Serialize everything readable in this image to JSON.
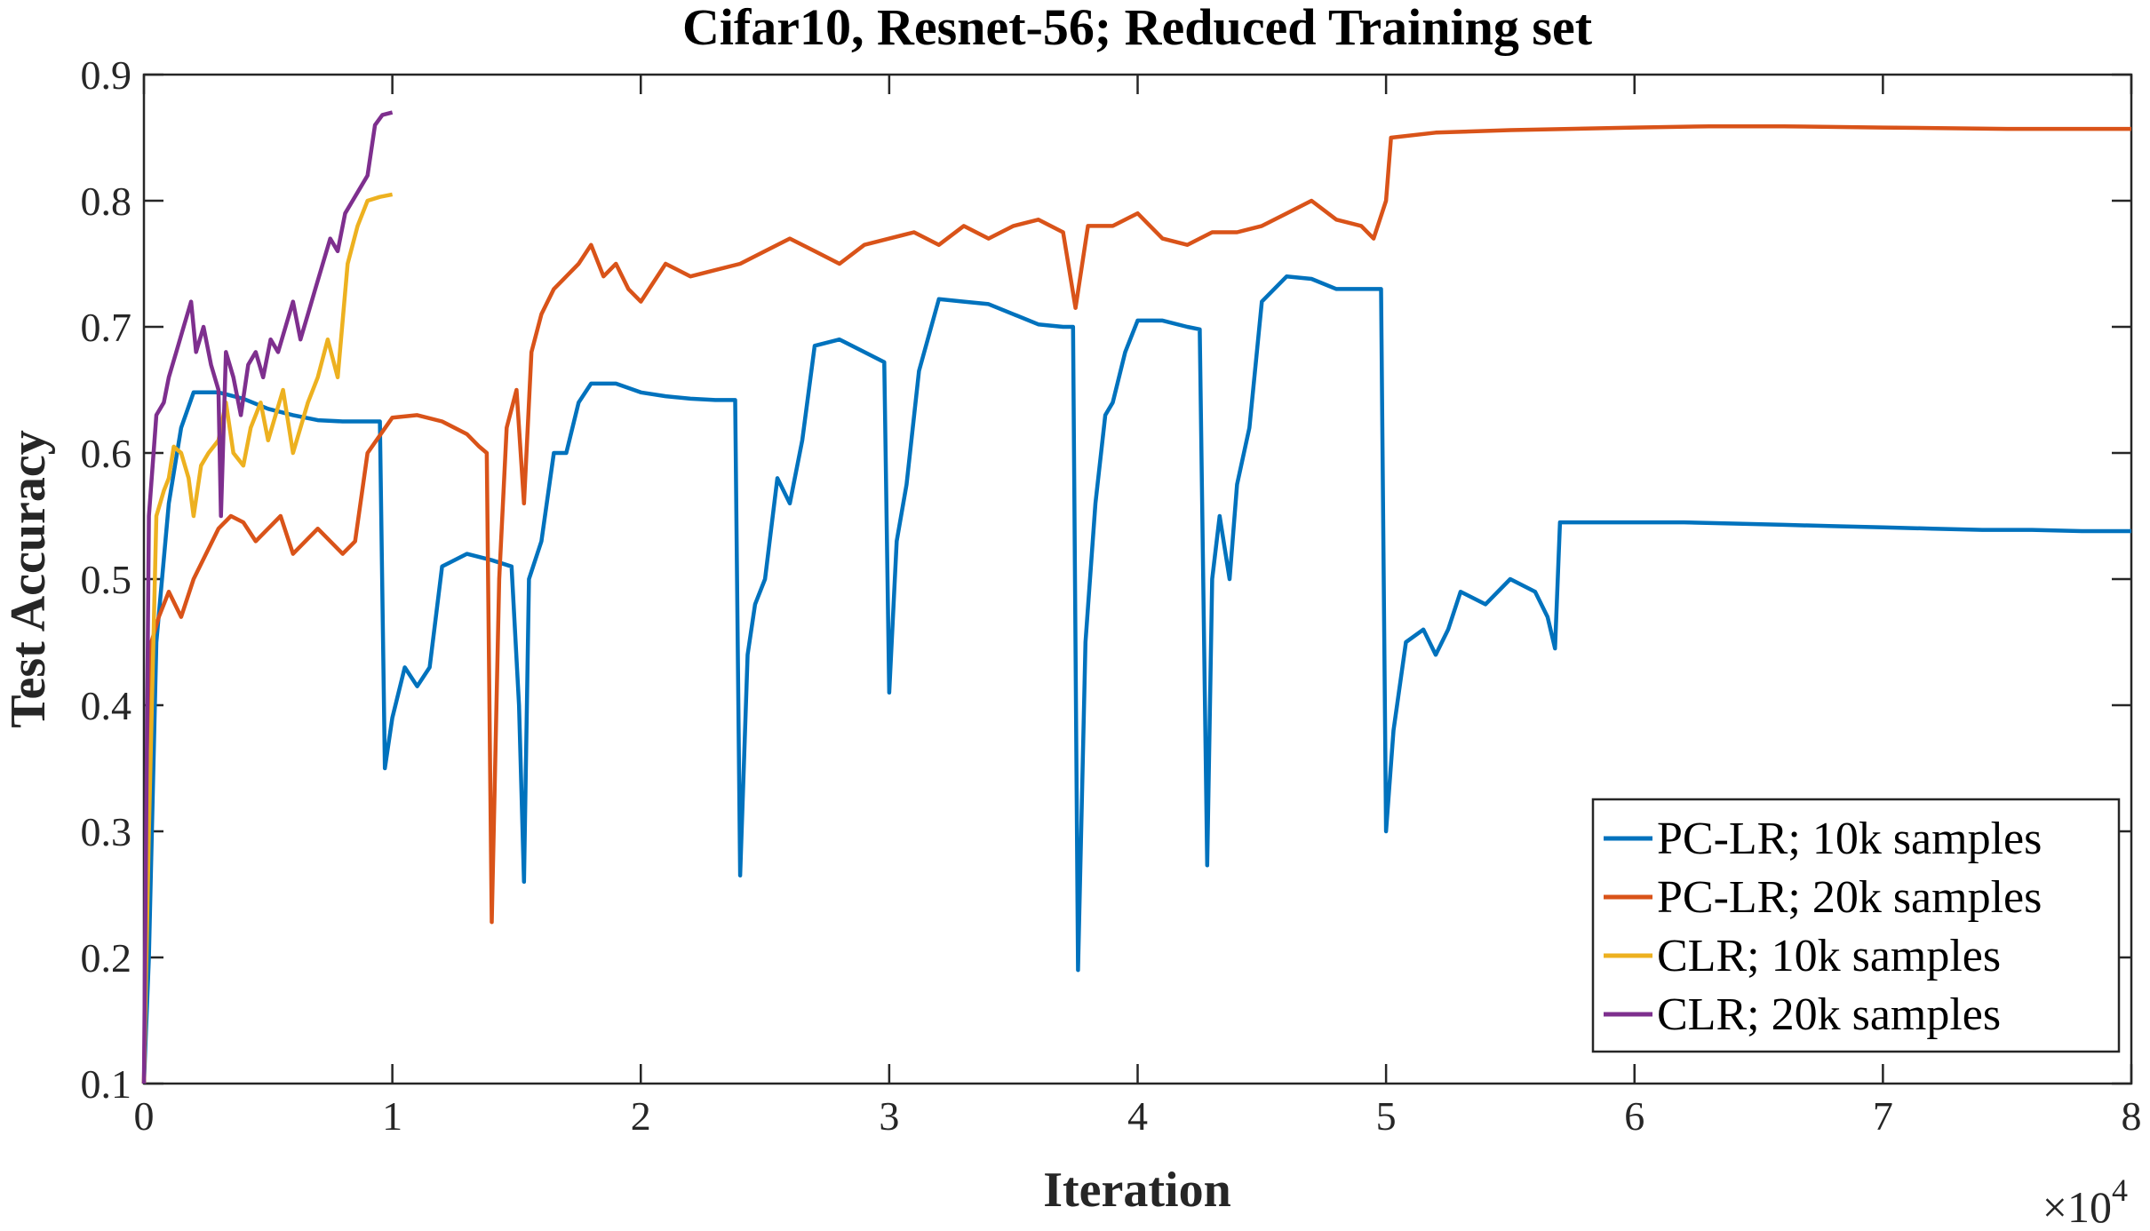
{
  "chart_data": {
    "type": "line",
    "title": "Cifar10, Resnet-56; Reduced Training set",
    "xlabel": "Iteration",
    "ylabel": "Test Accuracy",
    "x_multiplier_label": "×10",
    "x_multiplier_exponent": "4",
    "xlim": [
      0,
      80000
    ],
    "ylim": [
      0.1,
      0.9
    ],
    "xticks": [
      0,
      10000,
      20000,
      30000,
      40000,
      50000,
      60000,
      70000,
      80000
    ],
    "xtick_labels": [
      "0",
      "1",
      "2",
      "3",
      "4",
      "5",
      "6",
      "7",
      "8"
    ],
    "yticks": [
      0.1,
      0.2,
      0.3,
      0.4,
      0.5,
      0.6,
      0.7,
      0.8,
      0.9
    ],
    "ytick_labels": [
      "0.1",
      "0.2",
      "0.3",
      "0.4",
      "0.5",
      "0.6",
      "0.7",
      "0.8",
      "0.9"
    ],
    "grid": false,
    "legend_position": "bottom-right",
    "series": [
      {
        "name": "PC-LR; 10k samples",
        "color": "#0072BD",
        "x": [
          0,
          200,
          500,
          1000,
          1500,
          2000,
          3000,
          4000,
          5000,
          6000,
          7000,
          8000,
          9000,
          9500,
          9700,
          10000,
          10500,
          11000,
          11500,
          12000,
          13000,
          14000,
          14800,
          15100,
          15300,
          15500,
          16000,
          16500,
          17000,
          17500,
          18000,
          19000,
          20000,
          21000,
          22000,
          23000,
          23800,
          24000,
          24300,
          24600,
          25000,
          25500,
          26000,
          26500,
          27000,
          28000,
          29000,
          29500,
          29800,
          30000,
          30300,
          30700,
          31200,
          32000,
          33000,
          34000,
          35000,
          36000,
          37000,
          37400,
          37600,
          37900,
          38300,
          38700,
          39000,
          39500,
          40000,
          41000,
          42000,
          42500,
          42800,
          43000,
          43300,
          43700,
          44000,
          44500,
          45000,
          46000,
          47000,
          48000,
          49000,
          49800,
          50000,
          50300,
          50800,
          51500,
          52000,
          52500,
          53000,
          54000,
          55000,
          56000,
          56500,
          56800,
          57000,
          58000,
          60000,
          62000,
          64000,
          66000,
          68000,
          70000,
          72000,
          74000,
          76000,
          78000,
          80000
        ],
        "y": [
          0.1,
          0.2,
          0.45,
          0.56,
          0.62,
          0.648,
          0.648,
          0.643,
          0.635,
          0.63,
          0.626,
          0.625,
          0.625,
          0.625,
          0.35,
          0.39,
          0.43,
          0.415,
          0.43,
          0.51,
          0.52,
          0.515,
          0.51,
          0.4,
          0.26,
          0.5,
          0.53,
          0.6,
          0.6,
          0.64,
          0.655,
          0.655,
          0.648,
          0.645,
          0.643,
          0.642,
          0.642,
          0.265,
          0.44,
          0.48,
          0.5,
          0.58,
          0.56,
          0.61,
          0.685,
          0.69,
          0.68,
          0.675,
          0.672,
          0.41,
          0.53,
          0.575,
          0.665,
          0.722,
          0.72,
          0.718,
          0.71,
          0.702,
          0.7,
          0.7,
          0.19,
          0.45,
          0.56,
          0.63,
          0.64,
          0.68,
          0.705,
          0.705,
          0.7,
          0.698,
          0.273,
          0.5,
          0.55,
          0.5,
          0.575,
          0.62,
          0.72,
          0.74,
          0.738,
          0.73,
          0.73,
          0.73,
          0.3,
          0.38,
          0.45,
          0.46,
          0.44,
          0.46,
          0.49,
          0.48,
          0.5,
          0.49,
          0.47,
          0.445,
          0.545,
          0.545,
          0.545,
          0.545,
          0.544,
          0.543,
          0.542,
          0.541,
          0.54,
          0.539,
          0.539,
          0.538,
          0.538
        ]
      },
      {
        "name": "PC-LR; 20k samples",
        "color": "#D95319",
        "x": [
          0,
          300,
          600,
          1000,
          1500,
          2000,
          2500,
          3000,
          3500,
          4000,
          4500,
          5000,
          5500,
          6000,
          7000,
          8000,
          8500,
          9000,
          10000,
          11000,
          12000,
          13000,
          13500,
          13800,
          14000,
          14300,
          14600,
          15000,
          15300,
          15600,
          16000,
          16500,
          17000,
          17500,
          18000,
          18500,
          19000,
          19500,
          20000,
          21000,
          22000,
          23000,
          24000,
          25000,
          26000,
          27000,
          28000,
          29000,
          30000,
          31000,
          32000,
          33000,
          34000,
          35000,
          36000,
          37000,
          37500,
          38000,
          39000,
          40000,
          41000,
          42000,
          43000,
          44000,
          45000,
          46000,
          47000,
          48000,
          49000,
          49500,
          50000,
          50200,
          52000,
          55000,
          60000,
          63000,
          66000,
          70000,
          75000,
          80000
        ],
        "y": [
          0.1,
          0.45,
          0.47,
          0.49,
          0.47,
          0.5,
          0.52,
          0.54,
          0.55,
          0.545,
          0.53,
          0.54,
          0.55,
          0.52,
          0.54,
          0.52,
          0.53,
          0.6,
          0.628,
          0.63,
          0.625,
          0.615,
          0.605,
          0.6,
          0.228,
          0.5,
          0.62,
          0.65,
          0.56,
          0.68,
          0.71,
          0.73,
          0.74,
          0.75,
          0.765,
          0.74,
          0.75,
          0.73,
          0.72,
          0.75,
          0.74,
          0.745,
          0.75,
          0.76,
          0.77,
          0.76,
          0.75,
          0.765,
          0.77,
          0.775,
          0.765,
          0.78,
          0.77,
          0.78,
          0.785,
          0.775,
          0.715,
          0.78,
          0.78,
          0.79,
          0.77,
          0.765,
          0.775,
          0.775,
          0.78,
          0.79,
          0.8,
          0.785,
          0.78,
          0.77,
          0.8,
          0.85,
          0.854,
          0.856,
          0.858,
          0.859,
          0.859,
          0.858,
          0.857,
          0.857
        ]
      },
      {
        "name": "CLR; 10k samples",
        "color": "#EDB120",
        "x": [
          0,
          200,
          500,
          800,
          1000,
          1200,
          1500,
          1800,
          2000,
          2300,
          2600,
          3000,
          3300,
          3600,
          4000,
          4300,
          4700,
          5000,
          5300,
          5600,
          6000,
          6300,
          6600,
          7000,
          7400,
          7800,
          8200,
          8600,
          9000,
          9500,
          10000
        ],
        "y": [
          0.1,
          0.3,
          0.55,
          0.57,
          0.58,
          0.605,
          0.6,
          0.58,
          0.55,
          0.59,
          0.6,
          0.61,
          0.64,
          0.6,
          0.59,
          0.62,
          0.64,
          0.61,
          0.63,
          0.65,
          0.6,
          0.62,
          0.64,
          0.66,
          0.69,
          0.66,
          0.75,
          0.78,
          0.8,
          0.803,
          0.805
        ]
      },
      {
        "name": "CLR; 20k samples",
        "color": "#7E2F8E",
        "x": [
          0,
          200,
          500,
          800,
          1000,
          1300,
          1600,
          1900,
          2100,
          2400,
          2700,
          3000,
          3100,
          3300,
          3600,
          3900,
          4200,
          4500,
          4800,
          5100,
          5400,
          5700,
          6000,
          6300,
          6600,
          6900,
          7200,
          7500,
          7800,
          8100,
          8400,
          8700,
          9000,
          9300,
          9600,
          10000
        ],
        "y": [
          0.1,
          0.55,
          0.63,
          0.64,
          0.66,
          0.68,
          0.7,
          0.72,
          0.68,
          0.7,
          0.67,
          0.65,
          0.55,
          0.68,
          0.66,
          0.63,
          0.67,
          0.68,
          0.66,
          0.69,
          0.68,
          0.7,
          0.72,
          0.69,
          0.71,
          0.73,
          0.75,
          0.77,
          0.76,
          0.79,
          0.8,
          0.81,
          0.82,
          0.86,
          0.868,
          0.87
        ]
      }
    ]
  }
}
